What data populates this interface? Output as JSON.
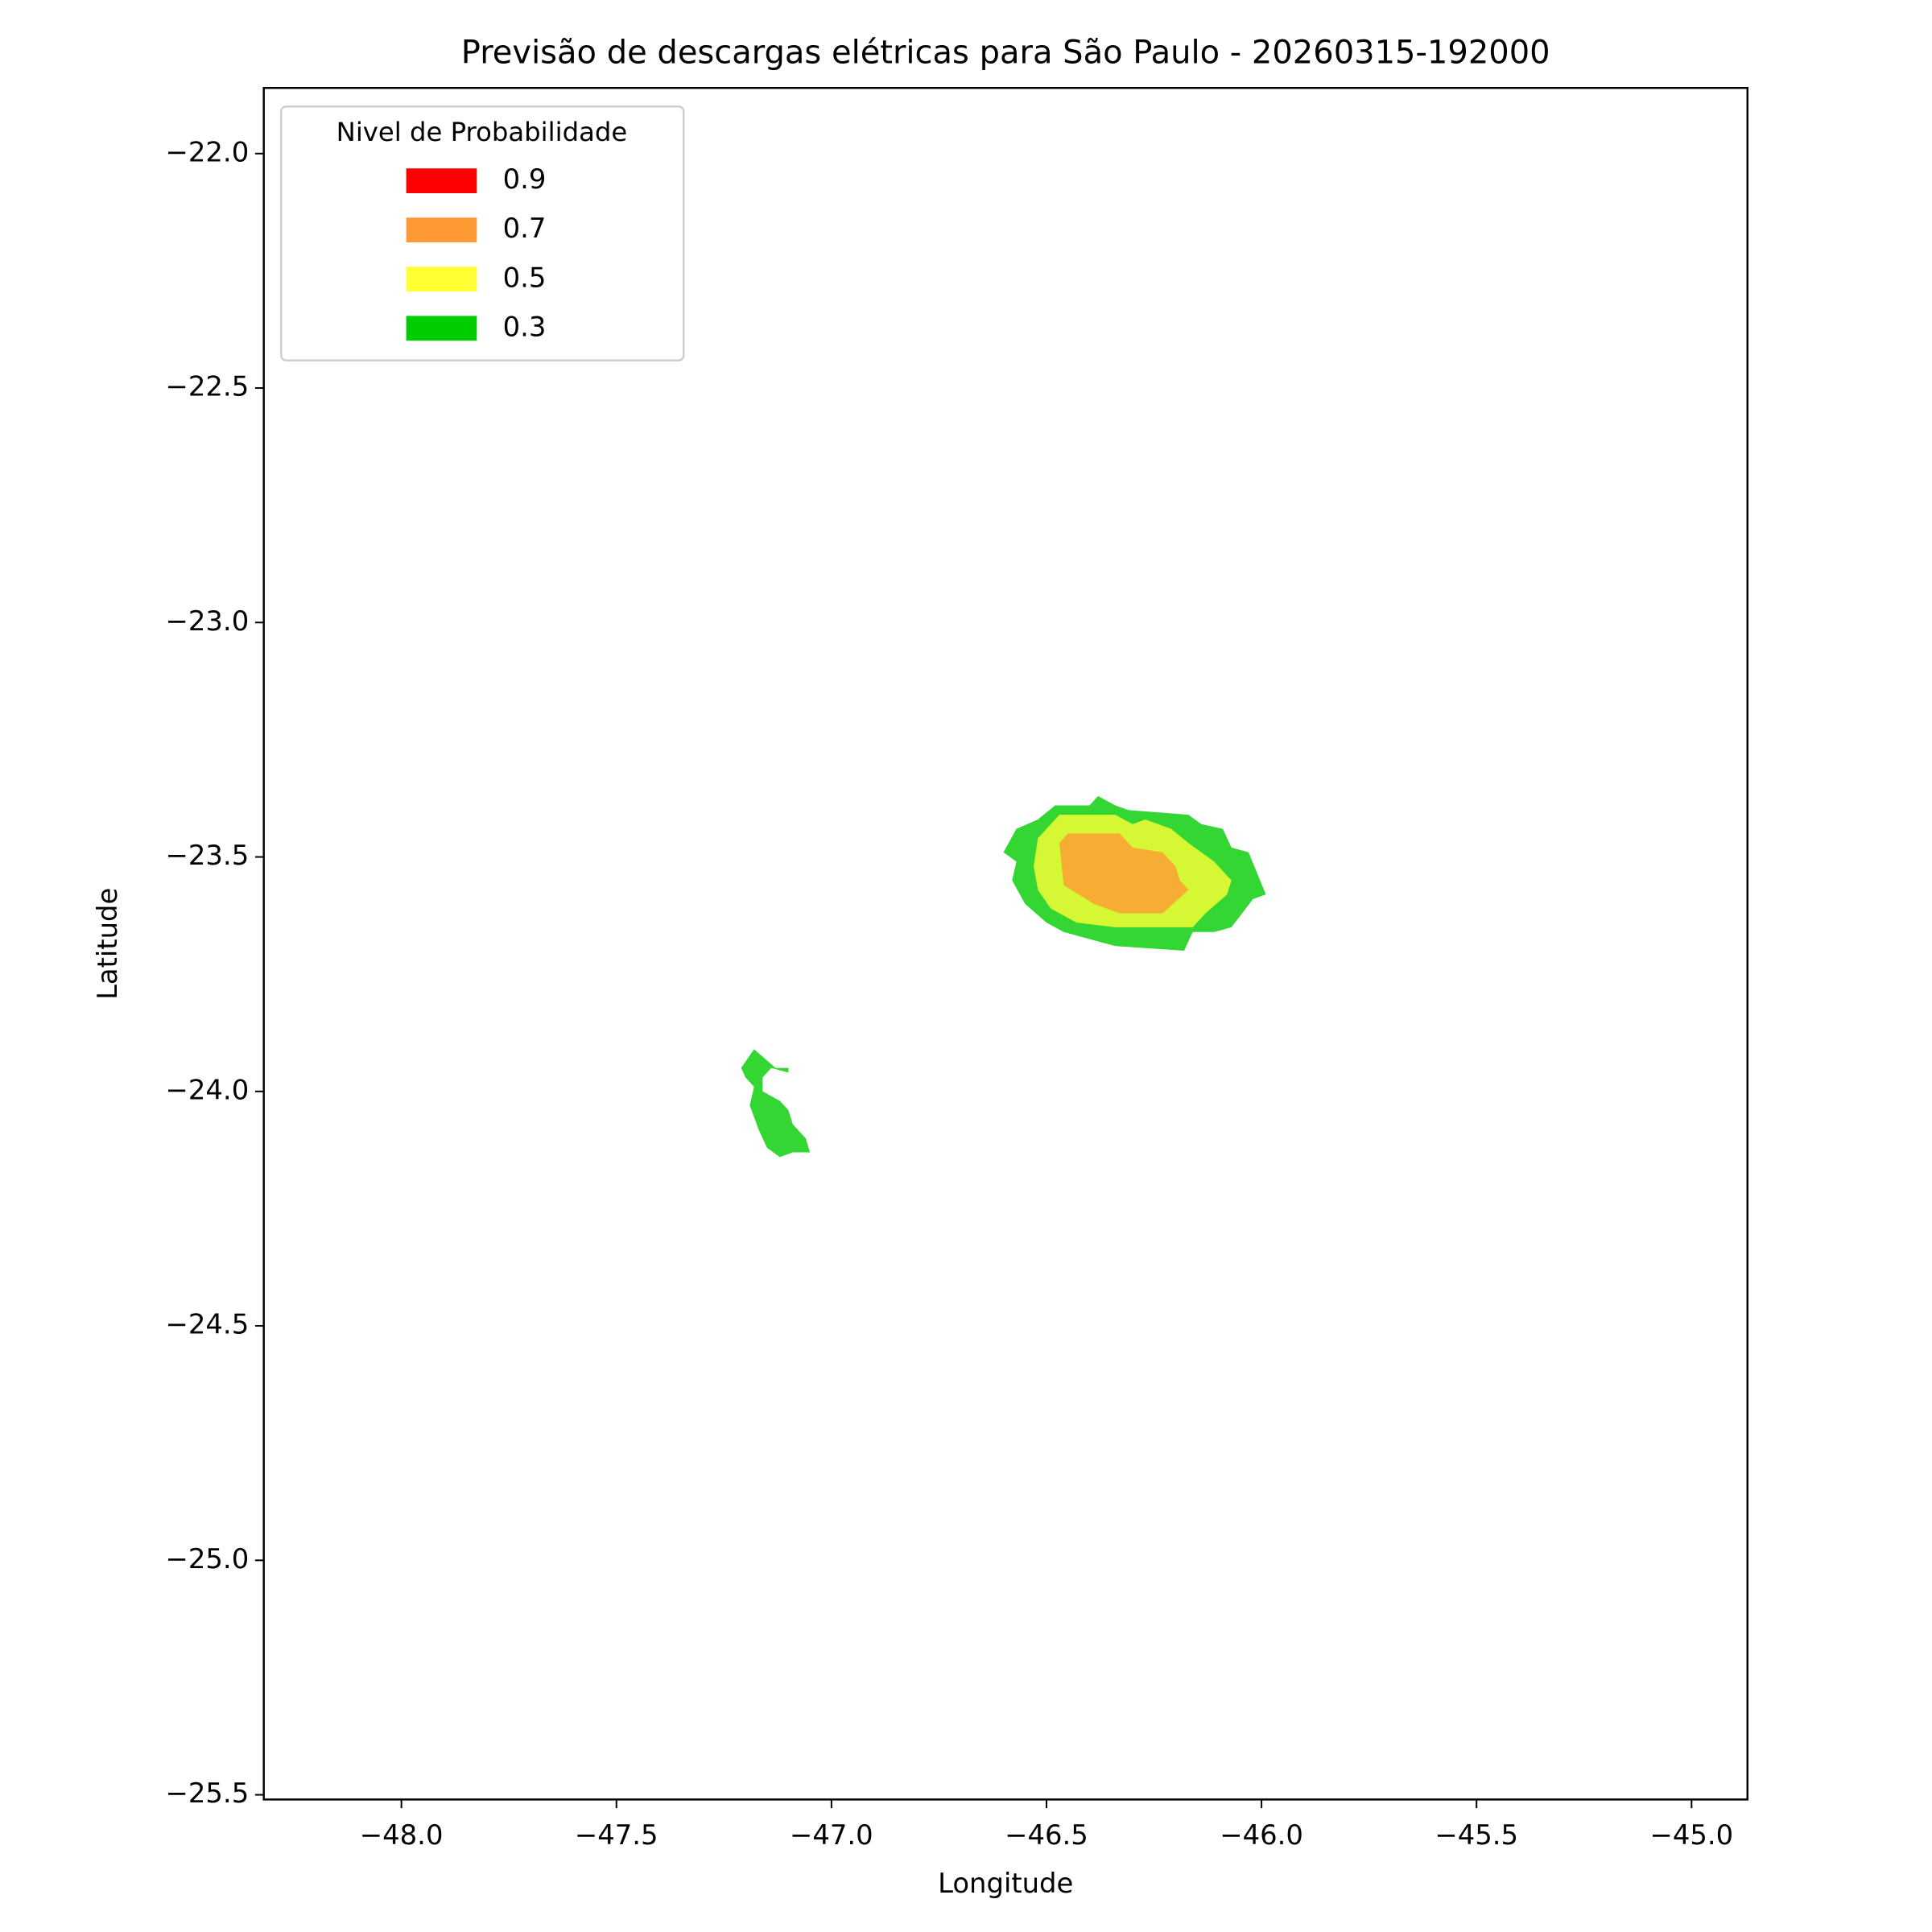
{
  "chart_data": {
    "type": "contour",
    "title": "Previsão de descargas elétricas para São Paulo - 20260315-192000",
    "x_label": "Longitude",
    "y_label": "Latitude",
    "legend_title": "Nivel de Probabilidade",
    "legend_position": "upper left",
    "fill_opacity": 0.8,
    "xlim": [
      -48.32,
      -44.87
    ],
    "ylim": [
      -25.51,
      -21.86
    ],
    "xticks": [
      {
        "value": -48.0,
        "label": "−48.0"
      },
      {
        "value": -47.5,
        "label": "−47.5"
      },
      {
        "value": -47.0,
        "label": "−47.0"
      },
      {
        "value": -46.5,
        "label": "−46.5"
      },
      {
        "value": -46.0,
        "label": "−46.0"
      },
      {
        "value": -45.5,
        "label": "−45.5"
      },
      {
        "value": -45.0,
        "label": "−45.0"
      }
    ],
    "yticks": [
      {
        "value": -22.0,
        "label": "−22.0"
      },
      {
        "value": -22.5,
        "label": "−22.5"
      },
      {
        "value": -23.0,
        "label": "−23.0"
      },
      {
        "value": -23.5,
        "label": "−23.5"
      },
      {
        "value": -24.0,
        "label": "−24.0"
      },
      {
        "value": -24.5,
        "label": "−24.5"
      },
      {
        "value": -25.0,
        "label": "−25.0"
      },
      {
        "value": -25.5,
        "label": "−25.5"
      }
    ],
    "series": [
      {
        "name": "0.9",
        "color": "#ff0000",
        "regions": []
      },
      {
        "name": "0.7",
        "color": "#ff9933",
        "regions": [
          {
            "lon": [
              -46.47,
              -46.45,
              -46.33,
              -46.3,
              -46.23,
              -46.2,
              -46.19,
              -46.17,
              -46.23,
              -46.33,
              -46.39,
              -46.46
            ],
            "lat": [
              -23.47,
              -23.45,
              -23.45,
              -23.48,
              -23.49,
              -23.52,
              -23.55,
              -23.57,
              -23.62,
              -23.62,
              -23.6,
              -23.56
            ]
          }
        ]
      },
      {
        "name": "0.5",
        "color": "#ffff33",
        "regions": [
          {
            "lon": [
              -46.52,
              -46.47,
              -46.34,
              -46.3,
              -46.27,
              -46.21,
              -46.17,
              -46.11,
              -46.07,
              -46.08,
              -46.13,
              -46.16,
              -46.34,
              -46.43,
              -46.49,
              -46.52,
              -46.53
            ],
            "lat": [
              -23.46,
              -23.41,
              -23.41,
              -23.43,
              -23.42,
              -23.44,
              -23.47,
              -23.51,
              -23.55,
              -23.58,
              -23.62,
              -23.65,
              -23.65,
              -23.64,
              -23.61,
              -23.57,
              -23.52
            ]
          }
        ]
      },
      {
        "name": "0.3",
        "color": "#00cc00",
        "regions": [
          {
            "lon": [
              -46.6,
              -46.57,
              -46.52,
              -46.48,
              -46.4,
              -46.38,
              -46.34,
              -46.31,
              -46.17,
              -46.14,
              -46.09,
              -46.07,
              -46.03,
              -45.99,
              -46.02,
              -46.07,
              -46.11,
              -46.16,
              -46.18,
              -46.34,
              -46.42,
              -46.46,
              -46.5,
              -46.55,
              -46.58,
              -46.57
            ],
            "lat": [
              -23.49,
              -23.44,
              -23.42,
              -23.39,
              -23.39,
              -23.37,
              -23.39,
              -23.4,
              -23.41,
              -23.43,
              -23.44,
              -23.48,
              -23.49,
              -23.58,
              -23.59,
              -23.65,
              -23.66,
              -23.66,
              -23.7,
              -23.69,
              -23.67,
              -23.66,
              -23.64,
              -23.6,
              -23.55,
              -23.51
            ]
          },
          {
            "lon": [
              -47.21,
              -47.18,
              -47.13,
              -47.1,
              -47.1,
              -47.14,
              -47.16,
              -47.16,
              -47.12,
              -47.1,
              -47.09,
              -47.06,
              -47.05,
              -47.09,
              -47.12,
              -47.15,
              -47.17,
              -47.19,
              -47.18,
              -47.2
            ],
            "lat": [
              -23.95,
              -23.91,
              -23.95,
              -23.95,
              -23.96,
              -23.95,
              -23.97,
              -24.0,
              -24.02,
              -24.04,
              -24.07,
              -24.1,
              -24.13,
              -24.13,
              -24.14,
              -24.12,
              -24.08,
              -24.03,
              -23.99,
              -23.97
            ]
          }
        ]
      }
    ]
  }
}
